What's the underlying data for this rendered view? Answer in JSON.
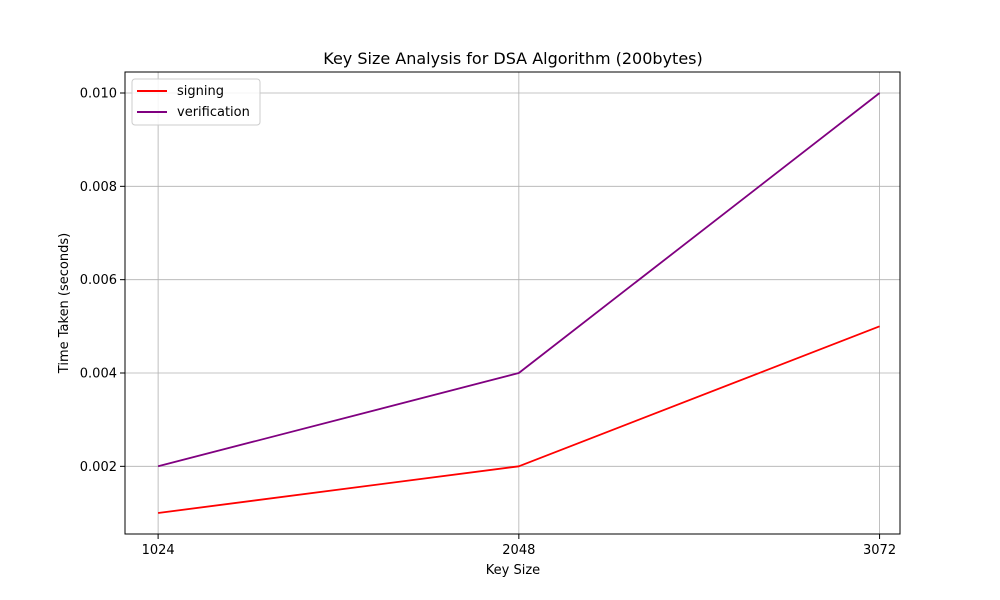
{
  "chart_data": {
    "type": "line",
    "title": "Key Size Analysis for DSA Algorithm (200bytes)",
    "xlabel": "Key Size",
    "ylabel": "Time Taken (seconds)",
    "x": [
      1024,
      2048,
      3072
    ],
    "x_tick_labels": [
      "1024",
      "2048",
      "3072"
    ],
    "y_ticks": [
      0.002,
      0.004,
      0.006,
      0.008,
      0.01
    ],
    "y_tick_labels": [
      "0.002",
      "0.004",
      "0.006",
      "0.008",
      "0.010"
    ],
    "xlim": [
      930,
      3130
    ],
    "ylim": [
      0.00055,
      0.01045
    ],
    "grid": true,
    "legend_position": "top-left",
    "series": [
      {
        "name": "signing",
        "values": [
          0.001,
          0.002,
          0.005
        ],
        "color": "#ff0000"
      },
      {
        "name": "verification",
        "values": [
          0.002,
          0.004,
          0.01
        ],
        "color": "#800080"
      }
    ]
  }
}
